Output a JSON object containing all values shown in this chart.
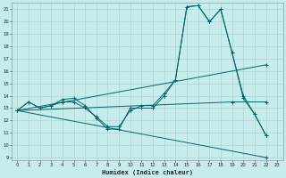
{
  "xlabel": "Humidex (Indice chaleur)",
  "bg_color": "#c8ecec",
  "grid_color": "#aad4d4",
  "line_color": "#006666",
  "xlim": [
    -0.5,
    23.5
  ],
  "ylim": [
    8.8,
    21.5
  ],
  "yticks": [
    9,
    10,
    11,
    12,
    13,
    14,
    15,
    16,
    17,
    18,
    19,
    20,
    21
  ],
  "xticks": [
    0,
    1,
    2,
    3,
    4,
    5,
    6,
    7,
    8,
    9,
    10,
    11,
    12,
    13,
    14,
    15,
    16,
    17,
    18,
    19,
    20,
    21,
    22,
    23
  ],
  "line1_x": [
    0,
    1,
    2,
    3,
    4,
    5,
    6,
    7,
    8,
    9,
    10,
    11,
    12,
    13,
    14,
    15,
    16,
    17,
    18,
    19,
    20,
    21,
    22
  ],
  "line1_y": [
    12.8,
    13.5,
    13.0,
    13.2,
    13.7,
    13.8,
    13.2,
    12.2,
    11.3,
    11.3,
    13.0,
    13.0,
    13.0,
    14.0,
    15.3,
    21.2,
    21.3,
    20.0,
    21.0,
    17.5,
    13.8,
    12.5,
    10.8
  ],
  "line2_x": [
    0,
    1,
    2,
    3,
    4,
    5,
    6,
    7,
    8,
    9,
    10,
    11,
    12,
    13,
    14,
    15,
    16,
    17,
    18,
    19,
    20,
    21,
    22
  ],
  "line2_y": [
    12.8,
    13.5,
    13.0,
    13.2,
    13.5,
    13.5,
    13.0,
    12.3,
    11.5,
    11.5,
    12.8,
    13.2,
    13.2,
    14.2,
    15.3,
    21.2,
    21.3,
    20.0,
    21.0,
    17.5,
    14.0,
    12.5,
    10.8
  ],
  "line3_x": [
    0,
    22
  ],
  "line3_y": [
    12.8,
    16.5
  ],
  "line4_x": [
    0,
    22
  ],
  "line4_y": [
    12.8,
    9.0
  ],
  "line5_x": [
    0,
    19,
    22
  ],
  "line5_y": [
    12.8,
    13.5,
    13.5
  ]
}
